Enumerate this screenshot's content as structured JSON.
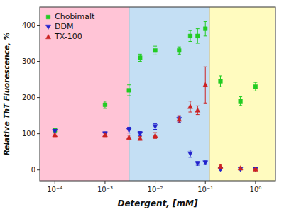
{
  "chart_data": {
    "type": "scatter",
    "xlabel": "Detergent, [mM]",
    "ylabel": "Relative ThT Fluorescence, %",
    "log": "x",
    "xlim": [
      5e-05,
      2.5
    ],
    "ylim": [
      -30,
      450
    ],
    "xticks": [
      {
        "value": 0.0001,
        "label": "10⁻⁴"
      },
      {
        "value": 0.001,
        "label": "10⁻³"
      },
      {
        "value": 0.01,
        "label": "10⁻²"
      },
      {
        "value": 0.1,
        "label": "10⁻¹"
      },
      {
        "value": 1,
        "label": "10⁰"
      }
    ],
    "yticks": [
      0,
      100,
      200,
      300,
      400
    ],
    "grid": false,
    "legend": "upper left",
    "regions": [
      {
        "xmin": 5e-05,
        "xmax": 0.003,
        "color": "#FFB0C8"
      },
      {
        "xmin": 0.003,
        "xmax": 0.12,
        "color": "#B0D4F0"
      },
      {
        "xmin": 0.12,
        "xmax": 2.5,
        "color": "#FFFAAA"
      }
    ],
    "region_borders": [
      0.003,
      0.12
    ],
    "border_color": "#999999",
    "x": [
      0.0001,
      0.001,
      0.003,
      0.005,
      0.01,
      0.03,
      0.05,
      0.07,
      0.1,
      0.2,
      0.5,
      1
    ],
    "series": [
      {
        "name": "Chobimalt",
        "color": "#22CC22",
        "marker": "square",
        "values": [
          110,
          180,
          220,
          310,
          330,
          330,
          370,
          370,
          390,
          245,
          190,
          230
        ],
        "yerr": [
          5,
          10,
          15,
          10,
          12,
          10,
          15,
          20,
          20,
          15,
          12,
          12
        ]
      },
      {
        "name": "DDM",
        "color": "#2222CC",
        "marker": "triangle-down",
        "values": [
          107,
          100,
          110,
          100,
          120,
          140,
          45,
          18,
          20,
          2,
          2,
          2
        ],
        "yerr": [
          5,
          5,
          8,
          6,
          8,
          8,
          10,
          5,
          5,
          3,
          2,
          2
        ]
      },
      {
        "name": "TX-100",
        "color": "#CC2222",
        "marker": "triangle-up",
        "values": [
          97,
          97,
          90,
          87,
          95,
          140,
          175,
          165,
          235,
          10,
          5,
          2
        ],
        "yerr": [
          5,
          5,
          6,
          5,
          8,
          10,
          15,
          12,
          50,
          5,
          3,
          2
        ]
      }
    ]
  }
}
